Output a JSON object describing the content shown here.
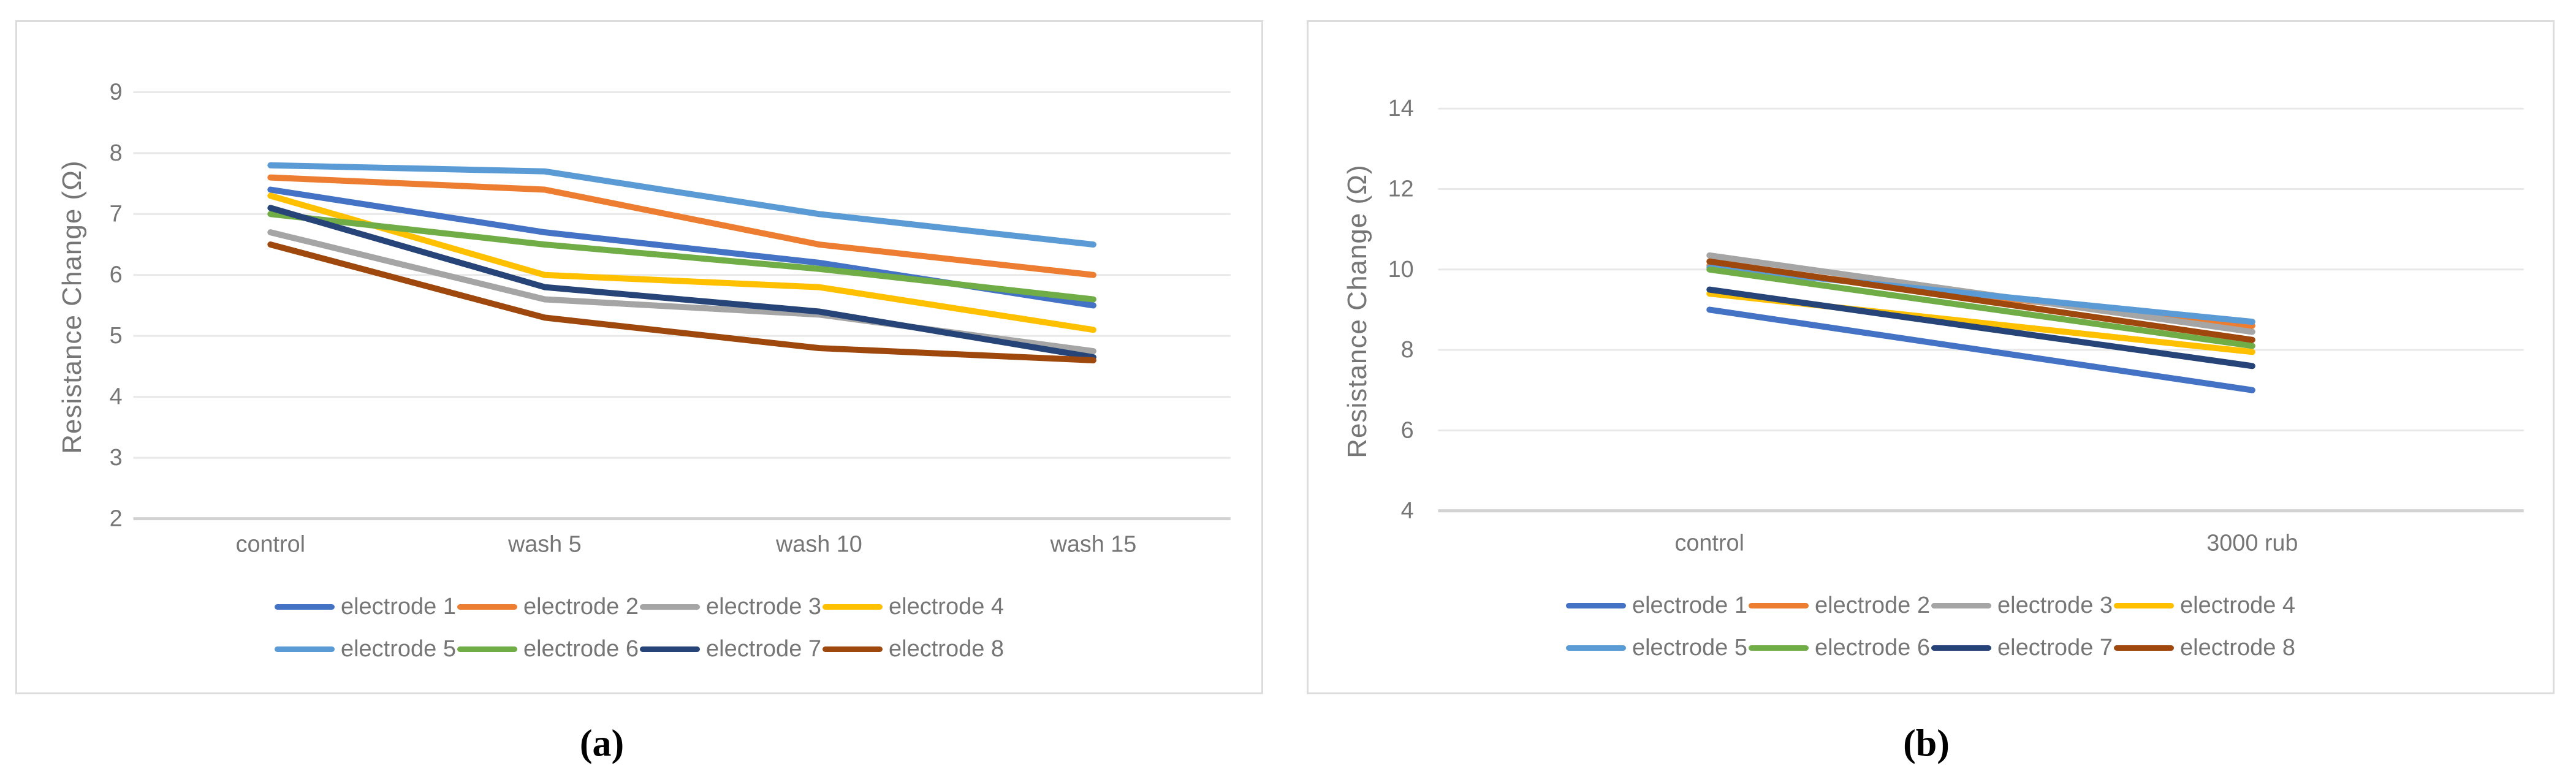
{
  "figure": {
    "captions": {
      "a": "(a)",
      "b": "(b)"
    },
    "grid_color": "#e8e8e8",
    "axis_color": "#d2d2d2",
    "text_color": "#767676"
  },
  "chart_data": [
    {
      "id": "a",
      "type": "line",
      "title": "",
      "xlabel": "",
      "ylabel": "Resistance Change (Ω)",
      "categories": [
        "control",
        "wash 5",
        "wash 10",
        "wash 15"
      ],
      "yticks": [
        2,
        3,
        4,
        5,
        6,
        7,
        8,
        9
      ],
      "ylim": [
        2,
        9.8
      ],
      "grid": true,
      "legend_position": "bottom",
      "series": [
        {
          "name": "electrode 1",
          "color": "#4472C4",
          "values": [
            7.4,
            6.7,
            6.2,
            5.5
          ]
        },
        {
          "name": "electrode 2",
          "color": "#ED7D31",
          "values": [
            7.6,
            7.4,
            6.5,
            6.0
          ]
        },
        {
          "name": "electrode 3",
          "color": "#A5A5A5",
          "values": [
            6.7,
            5.6,
            5.35,
            4.75
          ]
        },
        {
          "name": "electrode 4",
          "color": "#FFC000",
          "values": [
            7.3,
            6.0,
            5.8,
            5.1
          ]
        },
        {
          "name": "electrode 5",
          "color": "#5B9BD5",
          "values": [
            7.8,
            7.7,
            7.0,
            6.5
          ]
        },
        {
          "name": "electrode 6",
          "color": "#70AD47",
          "values": [
            7.0,
            6.5,
            6.1,
            5.6
          ]
        },
        {
          "name": "electrode 7",
          "color": "#264478",
          "values": [
            7.1,
            5.8,
            5.4,
            4.65
          ]
        },
        {
          "name": "electrode 8",
          "color": "#9E480E",
          "values": [
            6.5,
            5.3,
            4.8,
            4.6
          ]
        }
      ]
    },
    {
      "id": "b",
      "type": "line",
      "title": "",
      "xlabel": "",
      "ylabel": "Resistance Change (Ω)",
      "categories": [
        "control",
        "3000 rub"
      ],
      "yticks": [
        4,
        6,
        8,
        10,
        12,
        14
      ],
      "ylim": [
        4,
        16
      ],
      "grid": true,
      "legend_position": "bottom",
      "series": [
        {
          "name": "electrode 1",
          "color": "#4472C4",
          "values": [
            9.0,
            7.0
          ]
        },
        {
          "name": "electrode 2",
          "color": "#ED7D31",
          "values": [
            10.1,
            8.6
          ]
        },
        {
          "name": "electrode 3",
          "color": "#A5A5A5",
          "values": [
            10.35,
            8.45
          ]
        },
        {
          "name": "electrode 4",
          "color": "#FFC000",
          "values": [
            9.4,
            7.95
          ]
        },
        {
          "name": "electrode 5",
          "color": "#5B9BD5",
          "values": [
            10.05,
            8.7
          ]
        },
        {
          "name": "electrode 6",
          "color": "#70AD47",
          "values": [
            10.0,
            8.1
          ]
        },
        {
          "name": "electrode 7",
          "color": "#264478",
          "values": [
            9.5,
            7.6
          ]
        },
        {
          "name": "electrode 8",
          "color": "#9E480E",
          "values": [
            10.2,
            8.25
          ]
        }
      ]
    }
  ]
}
